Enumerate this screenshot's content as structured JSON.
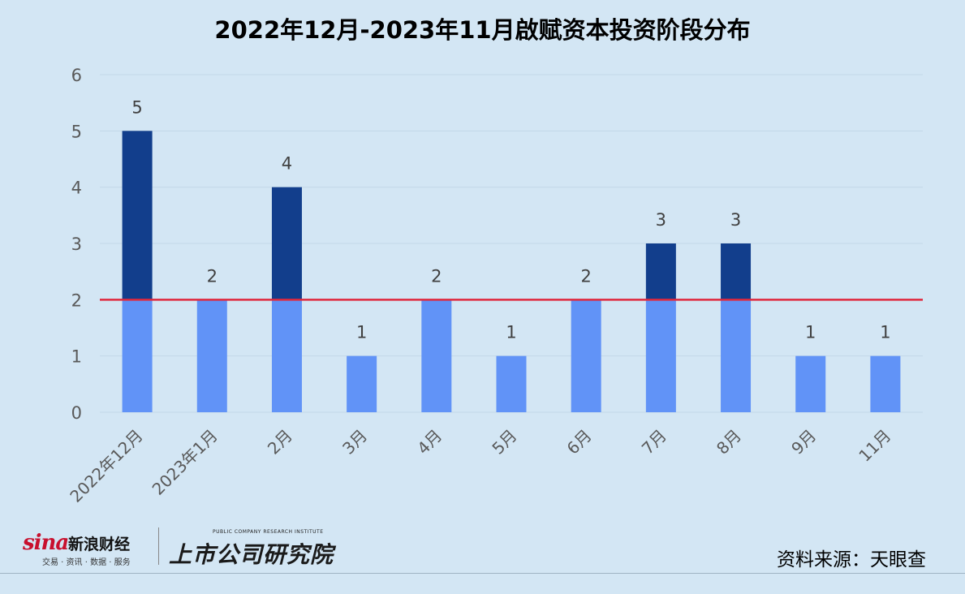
{
  "chart_data": {
    "type": "bar",
    "title": "2022年12月-2023年11月啟赋资本投资阶段分布",
    "categories": [
      "2022年12月",
      "2023年1月",
      "2月",
      "3月",
      "4月",
      "5月",
      "6月",
      "7月",
      "8月",
      "9月",
      "11月"
    ],
    "values": [
      5,
      2,
      4,
      1,
      2,
      1,
      2,
      3,
      3,
      1,
      1
    ],
    "data_labels": [
      "5",
      "2",
      "4",
      "1",
      "2",
      "1",
      "2",
      "3",
      "3",
      "1",
      "1"
    ],
    "ylim": [
      0,
      6
    ],
    "yticks": [
      "0",
      "1",
      "2",
      "3",
      "4",
      "5",
      "6"
    ],
    "reference_line": 2,
    "grid": true,
    "xlabel": "",
    "ylabel": "",
    "colors": {
      "below_line": "#6193f7",
      "above_line": "#123e8c",
      "reference_line": "#e0283d",
      "gridline": "#c3d8e8",
      "tick_text": "#595959",
      "label_text": "#404040"
    }
  },
  "footer": {
    "sina_logo": "sina",
    "sina_brand": "新浪财经",
    "sina_tagline": "交易 · 资讯 · 数据 · 服务",
    "institute_en": "PUBLIC COMPANY RESEARCH INSTITUTE",
    "institute_cn": "上市公司研究院",
    "source": "资料来源：天眼查"
  }
}
